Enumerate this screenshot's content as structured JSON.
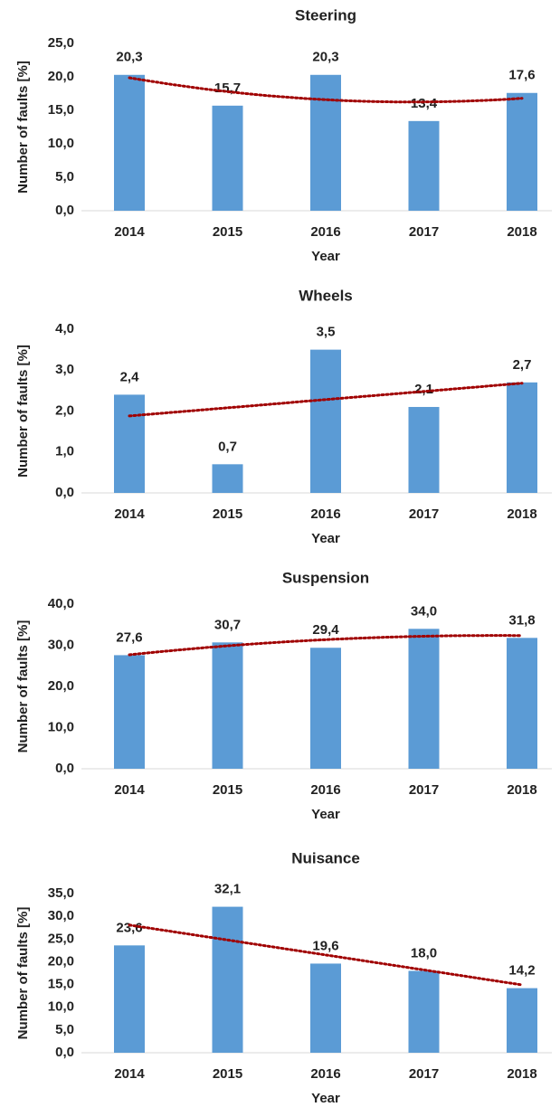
{
  "chart_data": [
    {
      "type": "bar",
      "title": "Steering",
      "xlabel": "Year",
      "ylabel": "Number of faults [%]",
      "categories": [
        "2014",
        "2015",
        "2016",
        "2017",
        "2018"
      ],
      "values": [
        20.3,
        15.7,
        20.3,
        13.4,
        17.6
      ],
      "value_labels": [
        "20,3",
        "15,7",
        "20,3",
        "13,4",
        "17,6"
      ],
      "color": "#5b9bd5",
      "ylim": [
        0,
        25
      ],
      "yticks": [
        {
          "value": 0,
          "label": "0,0"
        },
        {
          "value": 5,
          "label": "5,0"
        },
        {
          "value": 10,
          "label": "10,0"
        },
        {
          "value": 15,
          "label": "15,0"
        },
        {
          "value": 20,
          "label": "20,0"
        },
        {
          "value": 25,
          "label": "25,0"
        }
      ],
      "grid": false,
      "trendline": {
        "order": 2,
        "color": "#a00000"
      }
    },
    {
      "type": "bar",
      "title": "Wheels",
      "xlabel": "Year",
      "ylabel": "Number of faults [%]",
      "categories": [
        "2014",
        "2015",
        "2016",
        "2017",
        "2018"
      ],
      "values": [
        2.4,
        0.7,
        3.5,
        2.1,
        2.7
      ],
      "value_labels": [
        "2,4",
        "0,7",
        "3,5",
        "2,1",
        "2,7"
      ],
      "color": "#5b9bd5",
      "ylim": [
        0,
        4
      ],
      "yticks": [
        {
          "value": 0,
          "label": "0,0"
        },
        {
          "value": 1,
          "label": "1,0"
        },
        {
          "value": 2,
          "label": "2,0"
        },
        {
          "value": 3,
          "label": "3,0"
        },
        {
          "value": 4,
          "label": "4,0"
        }
      ],
      "grid": false,
      "trendline": {
        "order": 1,
        "color": "#a00000"
      }
    },
    {
      "type": "bar",
      "title": "Suspension",
      "xlabel": "Year",
      "ylabel": "Number of faults [%]",
      "categories": [
        "2014",
        "2015",
        "2016",
        "2017",
        "2018"
      ],
      "values": [
        27.6,
        30.7,
        29.4,
        34.0,
        31.8
      ],
      "value_labels": [
        "27,6",
        "30,7",
        "29,4",
        "34,0",
        "31,8"
      ],
      "color": "#5b9bd5",
      "ylim": [
        0,
        40
      ],
      "yticks": [
        {
          "value": 0,
          "label": "0,0"
        },
        {
          "value": 10,
          "label": "10,0"
        },
        {
          "value": 20,
          "label": "20,0"
        },
        {
          "value": 30,
          "label": "30,0"
        },
        {
          "value": 40,
          "label": "40,0"
        }
      ],
      "grid": false,
      "trendline": {
        "order": 2,
        "color": "#a00000"
      }
    },
    {
      "type": "bar",
      "title": "Nuisance",
      "xlabel": "Year",
      "ylabel": "Number of faults [%]",
      "categories": [
        "2014",
        "2015",
        "2016",
        "2017",
        "2018"
      ],
      "values": [
        23.6,
        32.1,
        19.6,
        18.0,
        14.2
      ],
      "value_labels": [
        "23,6",
        "32,1",
        "19,6",
        "18,0",
        "14,2"
      ],
      "color": "#5b9bd5",
      "ylim": [
        0,
        35
      ],
      "yticks": [
        {
          "value": 0,
          "label": "0,0"
        },
        {
          "value": 5,
          "label": "5,0"
        },
        {
          "value": 10,
          "label": "10,0"
        },
        {
          "value": 15,
          "label": "15,0"
        },
        {
          "value": 20,
          "label": "20,0"
        },
        {
          "value": 25,
          "label": "25,0"
        },
        {
          "value": 30,
          "label": "30,0"
        },
        {
          "value": 35,
          "label": "35,0"
        }
      ],
      "grid": false,
      "trendline": {
        "order": 1,
        "color": "#a00000"
      }
    }
  ]
}
